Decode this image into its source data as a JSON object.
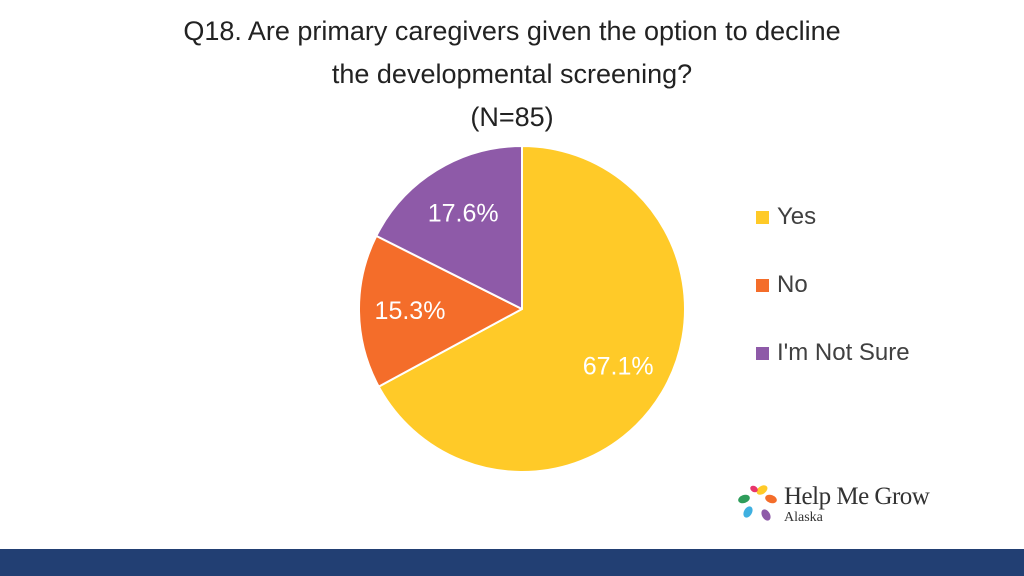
{
  "chart_data": {
    "type": "pie",
    "title_lines": [
      "Q18. Are primary caregivers given the option to decline",
      "the developmental screening?",
      "(N=85)"
    ],
    "slices": [
      {
        "label": "Yes",
        "value": 67.1,
        "display": "67.1%",
        "color": "#ffca28"
      },
      {
        "label": "No",
        "value": 15.3,
        "display": "15.3%",
        "color": "#f46d2a"
      },
      {
        "label": "I'm Not Sure",
        "value": 17.6,
        "display": "17.6%",
        "color": "#8e5aa8"
      }
    ],
    "start_angle": "12 o'clock",
    "direction": "clockwise",
    "legend_position": "right"
  },
  "logo": {
    "name": "Help Me Grow",
    "subtitle": "Alaska",
    "petal_colors": [
      "#ffca28",
      "#f46d2a",
      "#3fb0e0",
      "#8e5aa8",
      "#2e9d5b",
      "#e8356b"
    ]
  },
  "footer": {
    "color": "#223f73"
  }
}
